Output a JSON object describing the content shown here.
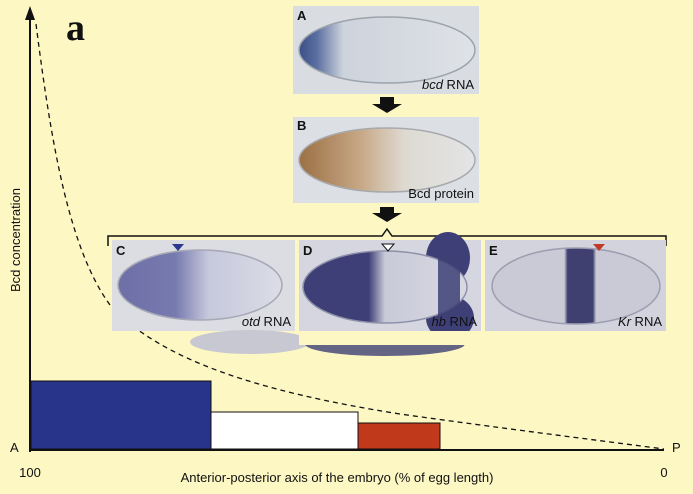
{
  "figure_label": "a",
  "axes": {
    "y_label": "Bcd concentration",
    "x_label": "Anterior-posterior axis of the embryo (% of egg length)",
    "left_end": "A",
    "right_end": "P",
    "x_start_tick": "100",
    "x_end_tick": "0"
  },
  "panels": [
    {
      "letter": "A",
      "gene": "bcd",
      "suffix": " RNA"
    },
    {
      "letter": "B",
      "gene": "",
      "suffix": "Bcd protein"
    },
    {
      "letter": "C",
      "gene": "otd",
      "suffix": " RNA",
      "marker": "filled",
      "marker_color": "#2b3a8f"
    },
    {
      "letter": "D",
      "gene": "hb",
      "suffix": " RNA",
      "marker": "open",
      "marker_color": "#ffffff"
    },
    {
      "letter": "E",
      "gene": "Kr",
      "suffix": " RNA",
      "marker": "filled",
      "marker_color": "#c0392b"
    }
  ],
  "domains": [
    {
      "name": "otd",
      "color": "#28348a"
    },
    {
      "name": "hb",
      "color": "#ffffff"
    },
    {
      "name": "Kr",
      "color": "#c0391b"
    }
  ],
  "colors": {
    "background": "#fdf7c3",
    "stain_blue": "#3a3f8f",
    "stain_brown": "#b88a58"
  }
}
